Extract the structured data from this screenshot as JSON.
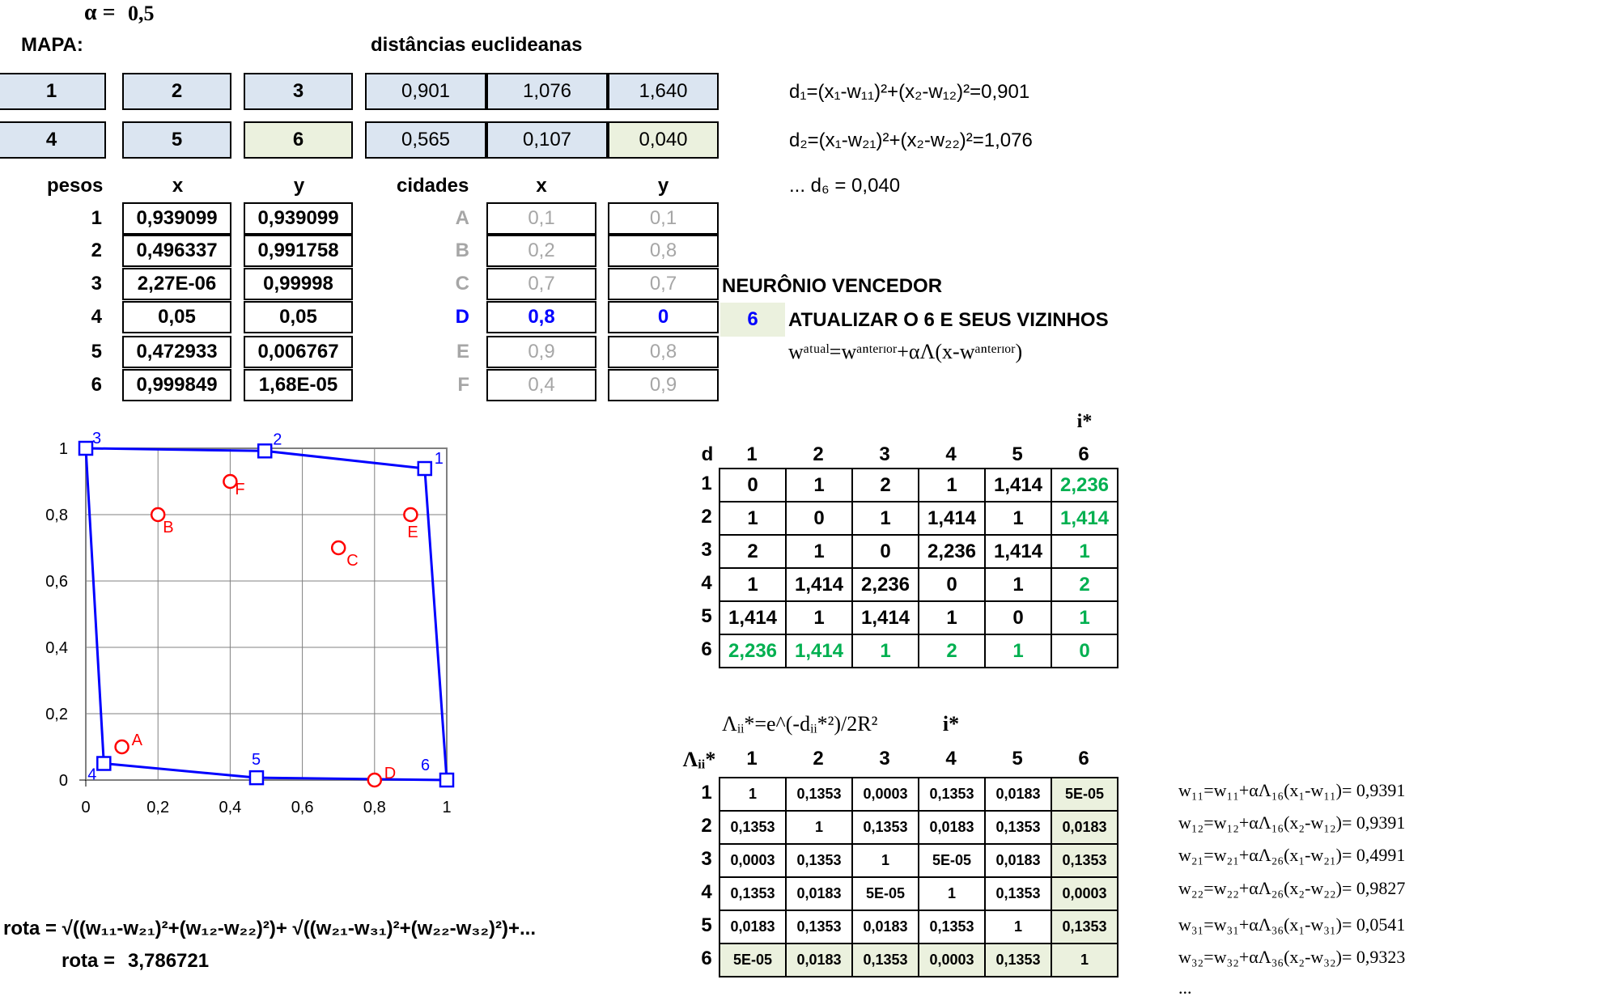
{
  "alpha": {
    "symbol": "α =",
    "value": "0,5"
  },
  "mapa": {
    "title": "MAPA:",
    "row1": [
      "1",
      "2",
      "3"
    ],
    "row2": [
      "4",
      "5",
      "6"
    ]
  },
  "dist": {
    "title": "distâncias euclideanas",
    "row1": [
      "0,901",
      "1,076",
      "1,640"
    ],
    "row2": [
      "0,565",
      "0,107",
      "0,040"
    ]
  },
  "formulas": {
    "d1": "d₁=(x₁-w₁₁)²+(x₂-w₁₂)²=0,901",
    "d2": "d₂=(x₁-w₂₁)²+(x₂-w₂₂)²=1,076",
    "d6": "... d₆ = 0,040"
  },
  "pesos": {
    "title": "pesos",
    "col_x": "x",
    "col_y": "y",
    "rows": [
      {
        "n": "1",
        "x": "0,939099",
        "y": "0,939099"
      },
      {
        "n": "2",
        "x": "0,496337",
        "y": "0,991758"
      },
      {
        "n": "3",
        "x": "2,27E-06",
        "y": "0,99998"
      },
      {
        "n": "4",
        "x": "0,05",
        "y": "0,05"
      },
      {
        "n": "5",
        "x": "0,472933",
        "y": "0,006767"
      },
      {
        "n": "6",
        "x": "0,999849",
        "y": "1,68E-05"
      }
    ]
  },
  "cidades": {
    "title": "cidades",
    "col_x": "x",
    "col_y": "y",
    "rows": [
      {
        "n": "A",
        "x": "0,1",
        "y": "0,1"
      },
      {
        "n": "B",
        "x": "0,2",
        "y": "0,8"
      },
      {
        "n": "C",
        "x": "0,7",
        "y": "0,7"
      },
      {
        "n": "D",
        "x": "0,8",
        "y": "0"
      },
      {
        "n": "E",
        "x": "0,9",
        "y": "0,8"
      },
      {
        "n": "F",
        "x": "0,4",
        "y": "0,9"
      }
    ]
  },
  "vencedor": {
    "title": "NEURÔNIO VENCEDOR",
    "value": "6",
    "update": "ATUALIZAR O 6 E SEUS VIZINHOS",
    "rule": "wᵃᵗᵘᵃˡ=wᵃⁿᵗᵉʳᶦᵒʳ+αΛ(x-wᵃⁿᵗᵉʳᶦᵒʳ)"
  },
  "dmatrix": {
    "istar": "i*",
    "corner": "d",
    "headers": [
      "1",
      "2",
      "3",
      "4",
      "5",
      "6"
    ],
    "rows": [
      [
        "0",
        "1",
        "2",
        "1",
        "1,414",
        "2,236"
      ],
      [
        "1",
        "0",
        "1",
        "1,414",
        "1",
        "1,414"
      ],
      [
        "2",
        "1",
        "0",
        "2,236",
        "1,414",
        "1"
      ],
      [
        "1",
        "1,414",
        "2,236",
        "0",
        "1",
        "2"
      ],
      [
        "1,414",
        "1",
        "1,414",
        "1",
        "0",
        "1"
      ],
      [
        "2,236",
        "1,414",
        "1",
        "2",
        "1",
        "0"
      ]
    ]
  },
  "lambda": {
    "formula": "Λᵢᵢ*=e^(-dᵢᵢ*²)/2R²",
    "istar": "i*",
    "corner": "Λᵢᵢ*",
    "headers": [
      "1",
      "2",
      "3",
      "4",
      "5",
      "6"
    ],
    "rows": [
      [
        "1",
        "0,1353",
        "0,0003",
        "0,1353",
        "0,0183",
        "5E-05"
      ],
      [
        "0,1353",
        "1",
        "0,1353",
        "0,0183",
        "0,1353",
        "0,0183"
      ],
      [
        "0,0003",
        "0,1353",
        "1",
        "5E-05",
        "0,0183",
        "0,1353"
      ],
      [
        "0,1353",
        "0,0183",
        "5E-05",
        "1",
        "0,1353",
        "0,0003"
      ],
      [
        "0,0183",
        "0,1353",
        "0,0183",
        "0,1353",
        "1",
        "0,1353"
      ],
      [
        "5E-05",
        "0,0183",
        "0,1353",
        "0,0003",
        "0,1353",
        "1"
      ]
    ]
  },
  "updates": [
    "w₁₁=w₁₁+αΛ₁₆(x₁-w₁₁)= 0,9391",
    "w₁₂=w₁₂+αΛ₁₆(x₂-w₁₂)= 0,9391",
    "w₂₁=w₂₁+αΛ₂₆(x₁-w₂₁)= 0,4991",
    "w₂₂=w₂₂+αΛ₂₆(x₂-w₂₂)= 0,9827",
    "w₃₁=w₃₁+αΛ₃₆(x₁-w₃₁)= 0,0541",
    "w₃₂=w₃₂+αΛ₃₆(x₂-w₃₂)= 0,9323",
    "..."
  ],
  "rota": {
    "formula": "rota = √((w₁₁-w₂₁)²+(w₁₂-w₂₂)²)+ √((w₂₁-w₃₁)²+(w₂₂-w₃₂)²)+...",
    "label": "rota =",
    "value": "3,786721"
  },
  "chart_data": {
    "type": "scatter",
    "xlim": [
      0,
      1
    ],
    "ylim": [
      0,
      1
    ],
    "x_ticks": [
      "0",
      "0,2",
      "0,4",
      "0,6",
      "0,8",
      "1"
    ],
    "y_ticks": [
      "0",
      "0,2",
      "0,4",
      "0,6",
      "0,8",
      "1"
    ],
    "grid": true,
    "series": [
      {
        "name": "pesos",
        "color": "#0000ff",
        "marker": "square",
        "connected": true,
        "points": [
          {
            "label": "1",
            "x": 0.939,
            "y": 0.939
          },
          {
            "label": "2",
            "x": 0.496,
            "y": 0.992
          },
          {
            "label": "3",
            "x": 0.0,
            "y": 1.0
          },
          {
            "label": "4",
            "x": 0.05,
            "y": 0.05
          },
          {
            "label": "5",
            "x": 0.473,
            "y": 0.007
          },
          {
            "label": "6",
            "x": 1.0,
            "y": 0.0
          }
        ],
        "path_order": [
          "3",
          "2",
          "1",
          "6",
          "5",
          "4",
          "3"
        ]
      },
      {
        "name": "cidades",
        "color": "#ff0000",
        "marker": "circle",
        "connected": false,
        "points": [
          {
            "label": "A",
            "x": 0.1,
            "y": 0.1
          },
          {
            "label": "B",
            "x": 0.2,
            "y": 0.8
          },
          {
            "label": "C",
            "x": 0.7,
            "y": 0.7
          },
          {
            "label": "D",
            "x": 0.8,
            "y": 0.0
          },
          {
            "label": "E",
            "x": 0.9,
            "y": 0.8
          },
          {
            "label": "F",
            "x": 0.4,
            "y": 0.9
          }
        ]
      }
    ]
  }
}
